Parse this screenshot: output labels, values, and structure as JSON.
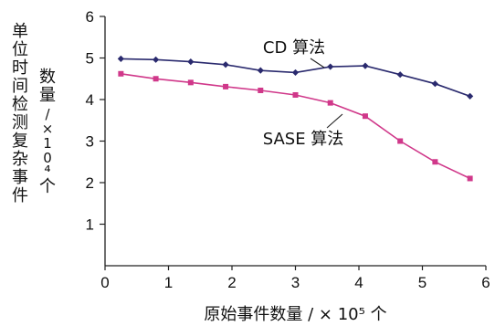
{
  "chart_data": {
    "type": "line",
    "xlabel": "原始事件数量 / × 10⁵ 个",
    "ylabel": "单位时间检测复杂事件数量 / × 10⁴ 个",
    "xlim": [
      0,
      6
    ],
    "ylim": [
      0,
      6
    ],
    "x_ticks": [
      0,
      1,
      2,
      3,
      4,
      5,
      6
    ],
    "y_ticks": [
      1,
      2,
      3,
      4,
      5,
      6
    ],
    "grid": false,
    "legend": "none (series labelled by annotations)",
    "series": [
      {
        "name": "CD 算法",
        "color": "#2a2a6e",
        "marker": "diamond",
        "x": [
          0.25,
          0.8,
          1.35,
          1.9,
          2.45,
          3.0,
          3.55,
          4.1,
          4.65,
          5.2,
          5.75
        ],
        "values": [
          4.98,
          4.96,
          4.91,
          4.84,
          4.7,
          4.65,
          4.79,
          4.81,
          4.6,
          4.38,
          4.08
        ]
      },
      {
        "name": "SASE 算法",
        "color": "#d0388a",
        "marker": "square",
        "x": [
          0.25,
          0.8,
          1.35,
          1.9,
          2.45,
          3.0,
          3.55,
          4.1,
          4.65,
          5.2,
          5.75
        ],
        "values": [
          4.62,
          4.5,
          4.41,
          4.31,
          4.22,
          4.11,
          3.92,
          3.6,
          3.0,
          2.5,
          2.1
        ]
      }
    ],
    "annotations": [
      {
        "text": "CD 算法",
        "series": 0
      },
      {
        "text": "SASE 算法",
        "series": 1
      }
    ]
  }
}
